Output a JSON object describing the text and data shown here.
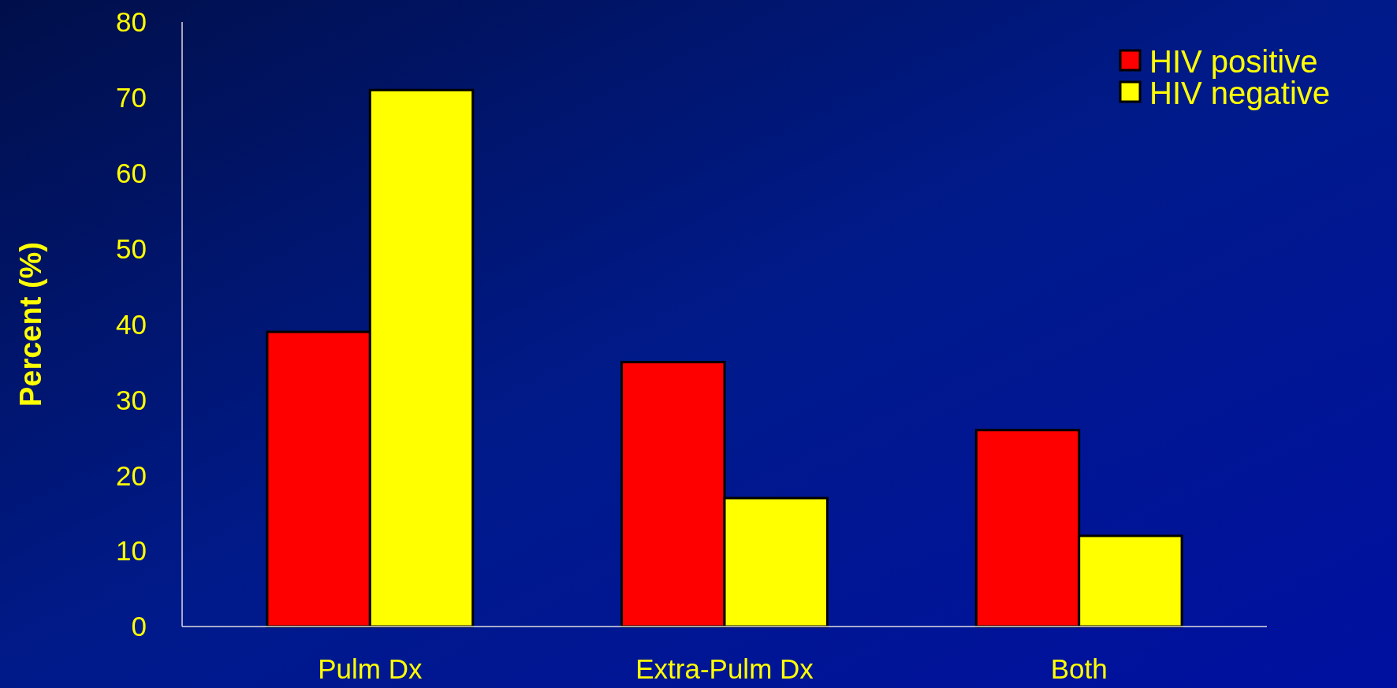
{
  "chart_data": {
    "type": "bar",
    "ylabel": "Percent (%)",
    "categories": [
      "Pulm Dx",
      "Extra-Pulm Dx",
      "Both"
    ],
    "series": [
      {
        "name": "HIV positive",
        "color": "#ff0000",
        "values": [
          39,
          35,
          26
        ]
      },
      {
        "name": "HIV negative",
        "color": "#ffff00",
        "values": [
          71,
          17,
          12
        ]
      }
    ],
    "ylim": [
      0,
      80
    ],
    "yticks": [
      0,
      10,
      20,
      30,
      40,
      50,
      60,
      70,
      80
    ],
    "grid": false,
    "legend": "top right"
  }
}
